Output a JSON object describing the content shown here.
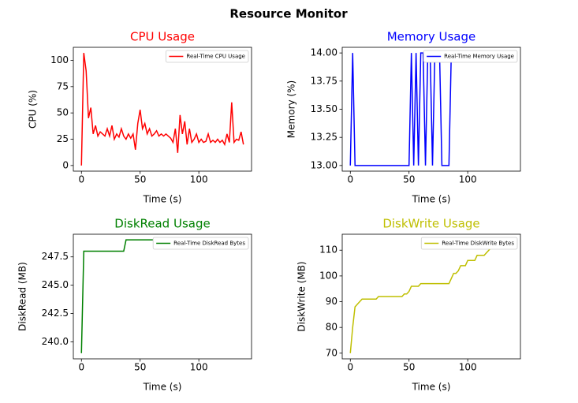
{
  "title": "Resource Monitor",
  "chart_data": [
    {
      "type": "line",
      "title": "CPU Usage",
      "x_label": "Time (s)",
      "y_label": "CPU (%)",
      "x": [
        0,
        2,
        4,
        6,
        8,
        10,
        12,
        14,
        16,
        18,
        20,
        22,
        24,
        26,
        28,
        30,
        32,
        34,
        36,
        38,
        40,
        42,
        44,
        46,
        48,
        50,
        52,
        54,
        56,
        58,
        60,
        62,
        64,
        66,
        68,
        70,
        72,
        74,
        76,
        78,
        80,
        82,
        84,
        86,
        88,
        90,
        92,
        94,
        96,
        98,
        100,
        102,
        104,
        106,
        108,
        110,
        112,
        114,
        116,
        118,
        120,
        122,
        124,
        126,
        128,
        130,
        132,
        134,
        136,
        138
      ],
      "series": [
        {
          "name": "Real-Time CPU Usage",
          "color": "#ff0000",
          "values": [
            0,
            107,
            90,
            45,
            55,
            30,
            38,
            28,
            32,
            30,
            28,
            35,
            28,
            38,
            25,
            30,
            27,
            35,
            28,
            25,
            30,
            26,
            30,
            15,
            40,
            53,
            35,
            40,
            30,
            35,
            28,
            30,
            33,
            28,
            30,
            28,
            30,
            28,
            26,
            22,
            35,
            12,
            48,
            30,
            42,
            20,
            35,
            22,
            25,
            30,
            22,
            25,
            22,
            23,
            30,
            22,
            24,
            22,
            25,
            22,
            24,
            20,
            30,
            22,
            60,
            22,
            25,
            24,
            32,
            20
          ]
        }
      ],
      "xlim": [
        -6.9,
        144.9
      ],
      "xticks": [
        0,
        50,
        100
      ],
      "ylim": [
        -5.35,
        112.35
      ],
      "yticks": [
        0,
        25,
        50,
        75,
        100
      ],
      "legend": "upper right"
    },
    {
      "type": "line",
      "title": "Memory Usage",
      "x_label": "Time (s)",
      "y_label": "Memory (%)",
      "x": [
        0,
        2,
        4,
        6,
        8,
        10,
        12,
        14,
        16,
        18,
        20,
        22,
        24,
        26,
        28,
        30,
        32,
        34,
        36,
        38,
        40,
        42,
        44,
        46,
        48,
        50,
        52,
        54,
        56,
        58,
        60,
        62,
        64,
        66,
        68,
        70,
        72,
        74,
        76,
        78,
        80,
        82,
        84,
        86,
        88,
        90,
        92,
        94,
        96,
        98,
        100,
        102,
        104,
        106,
        108,
        110,
        112,
        114,
        116,
        118,
        120,
        122,
        124,
        126,
        128,
        130,
        132,
        134,
        136,
        138
      ],
      "series": [
        {
          "name": "Real-Time Memory Usage",
          "color": "#0000ff",
          "values": [
            13,
            14,
            13,
            13,
            13,
            13,
            13,
            13,
            13,
            13,
            13,
            13,
            13,
            13,
            13,
            13,
            13,
            13,
            13,
            13,
            13,
            13,
            13,
            13,
            13,
            13,
            14,
            13,
            14,
            13,
            14,
            14,
            13,
            14,
            14,
            13,
            14,
            14,
            14,
            13,
            13,
            13,
            13,
            14,
            14,
            14,
            14,
            14,
            14,
            14,
            14,
            14,
            14,
            14,
            14,
            14,
            14,
            14,
            14,
            14,
            14,
            14,
            14,
            14,
            14,
            14,
            14,
            14,
            14,
            14
          ]
        }
      ],
      "xlim": [
        -6.9,
        144.9
      ],
      "xticks": [
        0,
        50,
        100
      ],
      "ylim": [
        12.95,
        14.05
      ],
      "yticks": [
        {
          "value": 13,
          "label": "13.00"
        },
        {
          "value": 13.25,
          "label": "13.25"
        },
        {
          "value": 13.5,
          "label": "13.50"
        },
        {
          "value": 13.75,
          "label": "13.75"
        },
        {
          "value": 14,
          "label": "14.00"
        }
      ],
      "legend": "upper right"
    },
    {
      "type": "line",
      "title": "DiskRead Usage",
      "x_label": "Time (s)",
      "y_label": "DiskRead (MB)",
      "x": [
        0,
        2,
        4,
        6,
        8,
        10,
        12,
        14,
        16,
        18,
        20,
        22,
        24,
        26,
        28,
        30,
        32,
        34,
        36,
        38,
        40,
        42,
        44,
        46,
        48,
        50,
        52,
        54,
        56,
        58,
        60,
        62,
        64,
        66,
        68,
        70,
        72,
        74,
        76,
        78,
        80,
        82,
        84,
        86,
        88,
        90,
        92,
        94,
        96,
        98,
        100,
        102,
        104,
        106,
        108,
        110,
        112,
        114,
        116,
        118,
        120,
        122,
        124,
        126,
        128,
        130,
        132,
        134,
        136,
        138
      ],
      "series": [
        {
          "name": "Real-Time DiskRead Bytes",
          "color": "#008000",
          "values": [
            239,
            248,
            248,
            248,
            248,
            248,
            248,
            248,
            248,
            248,
            248,
            248,
            248,
            248,
            248,
            248,
            248,
            248,
            248,
            249,
            249,
            249,
            249,
            249,
            249,
            249,
            249,
            249,
            249,
            249,
            249,
            249,
            249,
            249,
            249,
            249,
            249,
            249,
            249,
            249,
            249,
            249,
            249,
            249,
            249,
            249,
            249,
            249,
            249,
            249,
            249,
            249,
            249,
            249,
            249,
            249,
            249,
            249,
            249,
            249,
            249,
            249,
            249,
            249,
            249,
            249,
            249,
            249,
            249,
            249
          ]
        }
      ],
      "xlim": [
        -6.9,
        144.9
      ],
      "xticks": [
        0,
        50,
        100
      ],
      "ylim": [
        238.5,
        249.5
      ],
      "yticks": [
        {
          "value": 240,
          "label": "240.0"
        },
        {
          "value": 242.5,
          "label": "242.5"
        },
        {
          "value": 245,
          "label": "245.0"
        },
        {
          "value": 247.5,
          "label": "247.5"
        }
      ],
      "legend": "upper right"
    },
    {
      "type": "line",
      "title": "DiskWrite Usage",
      "x_label": "Time (s)",
      "y_label": "DiskWrite (MB)",
      "x": [
        0,
        2,
        4,
        6,
        8,
        10,
        12,
        14,
        16,
        18,
        20,
        22,
        24,
        26,
        28,
        30,
        32,
        34,
        36,
        38,
        40,
        42,
        44,
        46,
        48,
        50,
        52,
        54,
        56,
        58,
        60,
        62,
        64,
        66,
        68,
        70,
        72,
        74,
        76,
        78,
        80,
        82,
        84,
        86,
        88,
        90,
        92,
        94,
        96,
        98,
        100,
        102,
        104,
        106,
        108,
        110,
        112,
        114,
        116,
        118,
        120,
        122,
        124,
        126,
        128,
        130,
        132,
        134,
        136,
        138
      ],
      "series": [
        {
          "name": "Real-Time DiskWrite Bytes",
          "color": "#bfbf00",
          "values": [
            70,
            80,
            88,
            89,
            90,
            91,
            91,
            91,
            91,
            91,
            91,
            91,
            92,
            92,
            92,
            92,
            92,
            92,
            92,
            92,
            92,
            92,
            92,
            93,
            93,
            94,
            96,
            96,
            96,
            96,
            97,
            97,
            97,
            97,
            97,
            97,
            97,
            97,
            97,
            97,
            97,
            97,
            97,
            99,
            101,
            101,
            102,
            104,
            104,
            104,
            106,
            106,
            106,
            106,
            108,
            108,
            108,
            108,
            109,
            110,
            111,
            111,
            111,
            112,
            112,
            113,
            113,
            113,
            114,
            114
          ]
        }
      ],
      "xlim": [
        -6.9,
        144.9
      ],
      "xticks": [
        0,
        50,
        100
      ],
      "ylim": [
        67.8,
        116.2
      ],
      "yticks": [
        70,
        80,
        90,
        100,
        110
      ],
      "legend": "upper right"
    }
  ]
}
